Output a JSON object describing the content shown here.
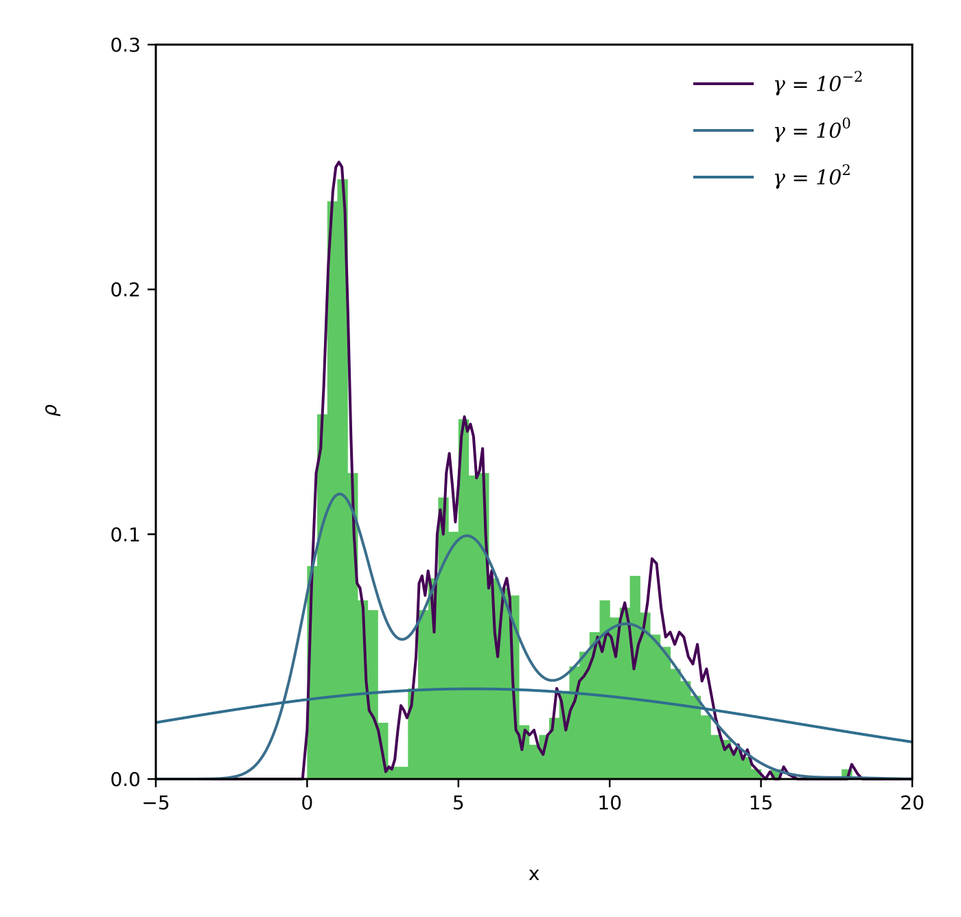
{
  "chart_data": {
    "type": "line",
    "xlabel": "x",
    "ylabel": "ρ",
    "xlim": [
      -5,
      20
    ],
    "ylim": [
      0,
      0.3
    ],
    "xticks": [
      -5,
      0,
      5,
      10,
      15,
      20
    ],
    "xtick_labels": [
      "−5",
      "0",
      "5",
      "10",
      "15",
      "20"
    ],
    "yticks": [
      0.0,
      0.1,
      0.2,
      0.3
    ],
    "ytick_labels": [
      "0.0",
      "0.1",
      "0.2",
      "0.3"
    ],
    "legend_position": "top-right",
    "histogram": {
      "color": "#5ec962",
      "bin_width": 0.333,
      "bins": [
        [
          0.0,
          0.087
        ],
        [
          0.333,
          0.149
        ],
        [
          0.667,
          0.236
        ],
        [
          1.0,
          0.245
        ],
        [
          1.333,
          0.125
        ],
        [
          1.667,
          0.073
        ],
        [
          2.0,
          0.069
        ],
        [
          2.333,
          0.023
        ],
        [
          2.667,
          0.005
        ],
        [
          3.0,
          0.005
        ],
        [
          3.333,
          0.037
        ],
        [
          3.667,
          0.069
        ],
        [
          4.0,
          0.082
        ],
        [
          4.333,
          0.115
        ],
        [
          4.667,
          0.101
        ],
        [
          5.0,
          0.147
        ],
        [
          5.333,
          0.124
        ],
        [
          5.667,
          0.125
        ],
        [
          6.0,
          0.082
        ],
        [
          6.333,
          0.078
        ],
        [
          6.667,
          0.075
        ],
        [
          7.0,
          0.022
        ],
        [
          7.333,
          0.014
        ],
        [
          7.667,
          0.018
        ],
        [
          8.0,
          0.025
        ],
        [
          8.333,
          0.036
        ],
        [
          8.667,
          0.046
        ],
        [
          9.0,
          0.052
        ],
        [
          9.333,
          0.06
        ],
        [
          9.667,
          0.073
        ],
        [
          10.0,
          0.066
        ],
        [
          10.333,
          0.07
        ],
        [
          10.667,
          0.083
        ],
        [
          11.0,
          0.068
        ],
        [
          11.333,
          0.059
        ],
        [
          11.667,
          0.054
        ],
        [
          12.0,
          0.045
        ],
        [
          12.333,
          0.04
        ],
        [
          12.667,
          0.034
        ],
        [
          13.0,
          0.026
        ],
        [
          13.333,
          0.018
        ],
        [
          13.667,
          0.016
        ],
        [
          14.0,
          0.012
        ],
        [
          14.333,
          0.009
        ],
        [
          14.667,
          0.004
        ],
        [
          15.0,
          0.0
        ],
        [
          15.333,
          0.004
        ],
        [
          15.667,
          0.0
        ],
        [
          16.0,
          0.0
        ],
        [
          16.333,
          0.0
        ],
        [
          16.667,
          0.0
        ],
        [
          17.0,
          0.0
        ],
        [
          17.333,
          0.0
        ],
        [
          17.667,
          0.004
        ],
        [
          18.0,
          0.0
        ]
      ]
    },
    "series": [
      {
        "name": "γ = 10⁻²",
        "legend_base": "γ = 10",
        "legend_exp": "−2",
        "color": "#440154",
        "x": [
          -5.0,
          -0.3,
          -0.15,
          0.0,
          0.15,
          0.3,
          0.45,
          0.55,
          0.7,
          0.85,
          0.95,
          1.05,
          1.15,
          1.25,
          1.35,
          1.45,
          1.55,
          1.65,
          1.75,
          1.85,
          1.95,
          2.05,
          2.2,
          2.35,
          2.5,
          2.6,
          2.7,
          2.8,
          2.9,
          3.0,
          3.1,
          3.2,
          3.3,
          3.45,
          3.6,
          3.7,
          3.8,
          3.9,
          4.0,
          4.1,
          4.2,
          4.3,
          4.4,
          4.5,
          4.6,
          4.7,
          4.8,
          4.9,
          5.0,
          5.1,
          5.2,
          5.3,
          5.4,
          5.5,
          5.6,
          5.7,
          5.8,
          5.9,
          6.0,
          6.1,
          6.2,
          6.3,
          6.4,
          6.5,
          6.6,
          6.7,
          6.8,
          6.9,
          7.0,
          7.1,
          7.2,
          7.35,
          7.5,
          7.65,
          7.8,
          7.95,
          8.1,
          8.25,
          8.4,
          8.55,
          8.7,
          8.85,
          9.0,
          9.15,
          9.3,
          9.45,
          9.6,
          9.75,
          9.9,
          10.05,
          10.2,
          10.35,
          10.5,
          10.65,
          10.8,
          10.95,
          11.1,
          11.25,
          11.4,
          11.55,
          11.7,
          11.85,
          12.0,
          12.15,
          12.3,
          12.45,
          12.6,
          12.75,
          12.9,
          13.05,
          13.2,
          13.35,
          13.5,
          13.65,
          13.8,
          13.95,
          14.1,
          14.25,
          14.4,
          14.55,
          14.7,
          14.85,
          15.0,
          15.15,
          15.3,
          15.45,
          15.6,
          15.75,
          15.9,
          16.05,
          16.2,
          16.35,
          16.5,
          17.0,
          17.5,
          17.7,
          17.85,
          18.0,
          18.1,
          18.2,
          18.35,
          18.5,
          19.0,
          20.0
        ],
        "y": [
          0.0,
          0.0,
          0.0,
          0.02,
          0.08,
          0.125,
          0.135,
          0.16,
          0.21,
          0.24,
          0.25,
          0.252,
          0.25,
          0.232,
          0.19,
          0.14,
          0.1,
          0.08,
          0.078,
          0.07,
          0.04,
          0.028,
          0.025,
          0.02,
          0.01,
          0.003,
          0.005,
          0.004,
          0.008,
          0.02,
          0.03,
          0.028,
          0.025,
          0.03,
          0.05,
          0.08,
          0.083,
          0.075,
          0.085,
          0.078,
          0.06,
          0.1,
          0.11,
          0.1,
          0.125,
          0.133,
          0.12,
          0.105,
          0.12,
          0.14,
          0.148,
          0.142,
          0.145,
          0.14,
          0.123,
          0.126,
          0.135,
          0.1,
          0.078,
          0.085,
          0.06,
          0.05,
          0.065,
          0.078,
          0.082,
          0.074,
          0.04,
          0.02,
          0.018,
          0.012,
          0.02,
          0.018,
          0.02,
          0.013,
          0.01,
          0.018,
          0.02,
          0.037,
          0.032,
          0.02,
          0.028,
          0.032,
          0.04,
          0.042,
          0.045,
          0.05,
          0.058,
          0.052,
          0.06,
          0.058,
          0.05,
          0.065,
          0.072,
          0.062,
          0.045,
          0.055,
          0.06,
          0.072,
          0.09,
          0.088,
          0.07,
          0.058,
          0.06,
          0.055,
          0.06,
          0.058,
          0.05,
          0.047,
          0.055,
          0.04,
          0.045,
          0.035,
          0.025,
          0.018,
          0.012,
          0.014,
          0.01,
          0.014,
          0.008,
          0.012,
          0.006,
          0.004,
          0.002,
          0.0,
          0.003,
          0.0,
          0.0,
          0.005,
          0.002,
          0.001,
          0.0,
          0.0,
          0.0,
          0.0,
          0.0,
          0.0,
          0.0,
          0.006,
          0.004,
          0.002,
          0.0,
          0.0,
          0.0,
          0.0
        ]
      },
      {
        "name": "γ = 10⁰",
        "legend_base": "γ = 10",
        "legend_exp": "0",
        "color": "#3b6e8c",
        "kde_bandwidth": 1.0
      },
      {
        "name": "γ = 10²",
        "legend_base": "γ = 10",
        "legend_exp": "2",
        "color": "#2f6e8e",
        "kde_bandwidth": 10.0
      }
    ]
  }
}
